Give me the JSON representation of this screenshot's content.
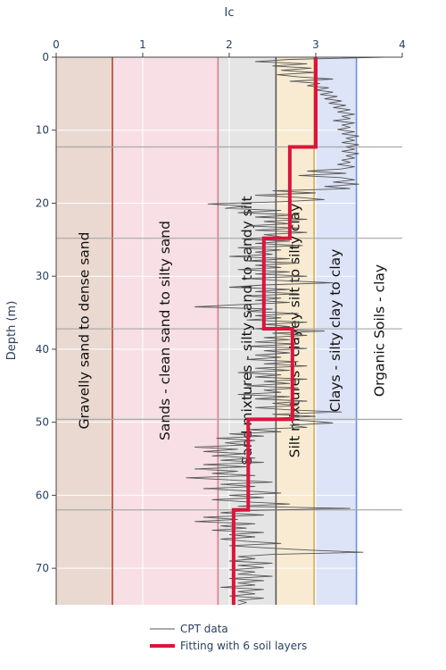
{
  "chart_data": {
    "type": "line",
    "xlabel": "Ic",
    "ylabel": "Depth (m)",
    "xlim": [
      0,
      4
    ],
    "ylim": [
      75,
      0
    ],
    "x_axis_position": "top",
    "y_reversed": true,
    "grid": true,
    "x_ticks": [
      0,
      1,
      2,
      3,
      4
    ],
    "y_ticks": [
      0,
      10,
      20,
      30,
      40,
      50,
      60,
      70
    ],
    "zones": [
      {
        "label": "Gravelly sand to dense sand",
        "x0": 0,
        "x1": 0.65,
        "fill": "#ead9d1",
        "line": "#b8442a"
      },
      {
        "label": "Sands - clean sand to silty sand",
        "x0": 0.65,
        "x1": 1.87,
        "fill": "#f7dfe5",
        "line": "#de7a90"
      },
      {
        "label": "Sand mixtures - silty sand to sandy silt",
        "x0": 1.87,
        "x1": 2.54,
        "fill": "#e5e5e5",
        "line": "#595959"
      },
      {
        "label": "Silt mixtures - clayey silt to silty clay",
        "x0": 2.54,
        "x1": 2.98,
        "fill": "#f8ebd2",
        "line": "#d7b450"
      },
      {
        "label": "Clays - silty clay to clay",
        "x0": 2.98,
        "x1": 3.47,
        "fill": "#dde4f7",
        "line": "#6b8fdb"
      },
      {
        "label": "Organic Soils - clay",
        "x0": 3.47,
        "x1": 4,
        "fill": "#ffffff",
        "line": null
      }
    ],
    "layer_boundaries": [
      12.3,
      24.8,
      37.2,
      49.6,
      62.0
    ],
    "series": [
      {
        "name": "CPT data",
        "color": "#555555",
        "points": [
          [
            3.8,
            0
          ],
          [
            2.7,
            0.3
          ],
          [
            2.3,
            0.6
          ],
          [
            2.9,
            0.9
          ],
          [
            2.5,
            1.2
          ],
          [
            2.95,
            1.5
          ],
          [
            2.6,
            1.8
          ],
          [
            3.0,
            2.1
          ],
          [
            2.55,
            2.4
          ],
          [
            2.8,
            2.7
          ],
          [
            3.2,
            3.0
          ],
          [
            2.7,
            3.3
          ],
          [
            3.05,
            3.6
          ],
          [
            2.9,
            3.9
          ],
          [
            3.15,
            4.2
          ],
          [
            3.0,
            4.5
          ],
          [
            3.2,
            4.8
          ],
          [
            3.05,
            5.1
          ],
          [
            3.25,
            5.4
          ],
          [
            3.1,
            5.7
          ],
          [
            3.3,
            6.0
          ],
          [
            3.15,
            6.3
          ],
          [
            3.35,
            6.6
          ],
          [
            3.2,
            6.9
          ],
          [
            3.4,
            7.2
          ],
          [
            3.25,
            7.5
          ],
          [
            3.45,
            7.8
          ],
          [
            3.3,
            8.1
          ],
          [
            3.4,
            8.4
          ],
          [
            3.2,
            8.7
          ],
          [
            3.45,
            9.0
          ],
          [
            3.3,
            9.3
          ],
          [
            3.4,
            9.6
          ],
          [
            3.25,
            9.9
          ],
          [
            3.45,
            10.2
          ],
          [
            3.3,
            10.5
          ],
          [
            3.5,
            10.8
          ],
          [
            3.35,
            11.1
          ],
          [
            3.45,
            11.4
          ],
          [
            3.3,
            11.7
          ],
          [
            3.5,
            12.0
          ],
          [
            3.35,
            12.3
          ],
          [
            3.45,
            12.6
          ],
          [
            3.3,
            12.9
          ],
          [
            3.5,
            13.2
          ],
          [
            3.35,
            13.5
          ],
          [
            3.45,
            13.8
          ],
          [
            3.3,
            14.1
          ],
          [
            3.4,
            14.4
          ],
          [
            3.25,
            14.7
          ],
          [
            3.45,
            15.0
          ],
          [
            3.3,
            15.3
          ],
          [
            2.9,
            15.6
          ],
          [
            3.35,
            15.9
          ],
          [
            2.8,
            16.2
          ],
          [
            3.3,
            16.5
          ],
          [
            3.45,
            16.8
          ],
          [
            3.2,
            17.1
          ],
          [
            3.5,
            17.4
          ],
          [
            3.1,
            17.7
          ],
          [
            3.4,
            18.0
          ],
          [
            2.5,
            18.3
          ],
          [
            3.0,
            18.6
          ],
          [
            2.3,
            18.9
          ],
          [
            2.8,
            19.2
          ],
          [
            3.1,
            19.5
          ],
          [
            2.6,
            19.8
          ],
          [
            1.75,
            20.1
          ],
          [
            2.2,
            20.4
          ],
          [
            1.95,
            20.7
          ],
          [
            2.6,
            21.0
          ],
          [
            2.1,
            21.3
          ],
          [
            2.8,
            21.6
          ],
          [
            2.3,
            21.9
          ],
          [
            2.9,
            22.2
          ],
          [
            2.4,
            22.5
          ],
          [
            2.7,
            22.8
          ],
          [
            2.2,
            23.1
          ],
          [
            2.8,
            23.4
          ],
          [
            2.3,
            23.7
          ],
          [
            2.9,
            24.0
          ],
          [
            2.4,
            24.3
          ],
          [
            2.6,
            24.6
          ],
          [
            2.15,
            24.9
          ],
          [
            2.7,
            25.2
          ],
          [
            2.3,
            25.5
          ],
          [
            2.85,
            25.8
          ],
          [
            2.1,
            26.1
          ],
          [
            2.6,
            26.4
          ],
          [
            2.3,
            26.7
          ],
          [
            2.5,
            27.0
          ],
          [
            2.0,
            27.3
          ],
          [
            2.7,
            27.6
          ],
          [
            2.2,
            27.9
          ],
          [
            2.8,
            28.2
          ],
          [
            2.3,
            28.5
          ],
          [
            2.6,
            28.8
          ],
          [
            2.1,
            29.1
          ],
          [
            2.7,
            29.4
          ],
          [
            2.3,
            29.7
          ],
          [
            2.9,
            30.0
          ],
          [
            2.2,
            30.3
          ],
          [
            2.6,
            30.6
          ],
          [
            3.2,
            30.9
          ],
          [
            2.4,
            31.2
          ],
          [
            2.0,
            31.5
          ],
          [
            2.7,
            31.8
          ],
          [
            2.3,
            32.1
          ],
          [
            2.8,
            32.4
          ],
          [
            2.2,
            32.7
          ],
          [
            2.6,
            33.0
          ],
          [
            2.3,
            33.3
          ],
          [
            2.7,
            33.6
          ],
          [
            2.1,
            33.9
          ],
          [
            1.6,
            34.2
          ],
          [
            2.5,
            34.5
          ],
          [
            2.2,
            34.8
          ],
          [
            2.8,
            35.1
          ],
          [
            2.3,
            35.4
          ],
          [
            2.6,
            35.7
          ],
          [
            2.2,
            36.0
          ],
          [
            2.9,
            36.3
          ],
          [
            2.4,
            36.6
          ],
          [
            2.7,
            36.9
          ],
          [
            2.3,
            37.2
          ],
          [
            3.1,
            37.5
          ],
          [
            2.5,
            37.8
          ],
          [
            2.9,
            38.1
          ],
          [
            2.4,
            38.4
          ],
          [
            2.7,
            38.7
          ],
          [
            2.3,
            39.0
          ],
          [
            2.8,
            39.3
          ],
          [
            2.2,
            39.6
          ],
          [
            2.9,
            39.9
          ],
          [
            2.4,
            40.2
          ],
          [
            2.7,
            40.5
          ],
          [
            2.3,
            40.8
          ],
          [
            2.6,
            41.1
          ],
          [
            2.2,
            41.4
          ],
          [
            2.8,
            41.7
          ],
          [
            2.4,
            42.0
          ],
          [
            2.9,
            42.3
          ],
          [
            2.3,
            42.6
          ],
          [
            2.7,
            42.9
          ],
          [
            2.1,
            43.2
          ],
          [
            2.6,
            43.5
          ],
          [
            2.3,
            43.8
          ],
          [
            2.9,
            44.1
          ],
          [
            2.4,
            44.4
          ],
          [
            2.7,
            44.7
          ],
          [
            2.2,
            45.0
          ],
          [
            2.8,
            45.3
          ],
          [
            2.4,
            45.6
          ],
          [
            2.6,
            45.9
          ],
          [
            2.1,
            46.2
          ],
          [
            2.7,
            46.5
          ],
          [
            2.3,
            46.8
          ],
          [
            2.9,
            47.1
          ],
          [
            2.5,
            47.4
          ],
          [
            2.8,
            47.7
          ],
          [
            2.3,
            48.0
          ],
          [
            2.7,
            48.3
          ],
          [
            3.3,
            48.6
          ],
          [
            2.5,
            48.9
          ],
          [
            3.0,
            49.2
          ],
          [
            2.4,
            49.5
          ],
          [
            2.9,
            49.8
          ],
          [
            3.2,
            50.1
          ],
          [
            2.7,
            50.4
          ],
          [
            2.9,
            50.7
          ],
          [
            2.2,
            51.0
          ],
          [
            2.6,
            51.3
          ],
          [
            2.0,
            51.6
          ],
          [
            2.4,
            51.9
          ],
          [
            1.85,
            52.2
          ],
          [
            2.3,
            52.5
          ],
          [
            1.95,
            52.8
          ],
          [
            2.2,
            53.1
          ],
          [
            1.6,
            53.4
          ],
          [
            2.1,
            53.7
          ],
          [
            1.7,
            54.0
          ],
          [
            2.2,
            54.3
          ],
          [
            1.8,
            54.6
          ],
          [
            2.3,
            54.9
          ],
          [
            1.9,
            55.2
          ],
          [
            2.4,
            55.5
          ],
          [
            1.7,
            55.8
          ],
          [
            2.2,
            56.1
          ],
          [
            1.6,
            56.4
          ],
          [
            2.1,
            56.7
          ],
          [
            1.8,
            57.0
          ],
          [
            2.3,
            57.3
          ],
          [
            1.5,
            57.6
          ],
          [
            2.0,
            57.9
          ],
          [
            2.5,
            58.2
          ],
          [
            1.9,
            58.5
          ],
          [
            2.3,
            58.8
          ],
          [
            1.7,
            59.1
          ],
          [
            2.2,
            59.4
          ],
          [
            2.6,
            59.7
          ],
          [
            2.0,
            60.0
          ],
          [
            2.4,
            60.3
          ],
          [
            1.8,
            60.6
          ],
          [
            2.2,
            60.9
          ],
          [
            2.7,
            61.2
          ],
          [
            2.1,
            61.5
          ],
          [
            3.4,
            61.8
          ],
          [
            2.2,
            62.1
          ],
          [
            1.9,
            62.4
          ],
          [
            2.4,
            62.7
          ],
          [
            1.7,
            63.0
          ],
          [
            2.1,
            63.3
          ],
          [
            1.6,
            63.6
          ],
          [
            2.3,
            63.9
          ],
          [
            1.9,
            64.2
          ],
          [
            2.2,
            64.5
          ],
          [
            1.8,
            64.8
          ],
          [
            2.4,
            65.1
          ],
          [
            2.0,
            65.4
          ],
          [
            2.3,
            65.7
          ],
          [
            1.9,
            66.0
          ],
          [
            2.2,
            66.3
          ],
          [
            2.6,
            66.6
          ],
          [
            2.0,
            66.9
          ],
          [
            2.4,
            67.2
          ],
          [
            2.9,
            67.5
          ],
          [
            3.55,
            67.8
          ],
          [
            2.5,
            68.1
          ],
          [
            2.1,
            68.4
          ],
          [
            2.3,
            68.7
          ],
          [
            2.0,
            69.0
          ],
          [
            2.5,
            69.3
          ],
          [
            2.1,
            69.6
          ],
          [
            2.4,
            69.9
          ],
          [
            2.0,
            70.2
          ],
          [
            2.3,
            70.5
          ],
          [
            2.1,
            70.8
          ],
          [
            2.5,
            71.1
          ],
          [
            2.0,
            71.4
          ],
          [
            2.4,
            71.7
          ],
          [
            2.1,
            72.0
          ],
          [
            2.3,
            72.3
          ],
          [
            1.9,
            72.6
          ],
          [
            2.4,
            72.9
          ],
          [
            2.1,
            73.2
          ],
          [
            2.3,
            73.5
          ],
          [
            2.0,
            73.8
          ],
          [
            2.4,
            74.1
          ],
          [
            2.1,
            74.4
          ],
          [
            2.2,
            74.7
          ],
          [
            2.1,
            75
          ]
        ]
      },
      {
        "name": "Fitting with 6 soil layers",
        "color": "#dc143c",
        "points": [
          [
            3.0,
            0
          ],
          [
            3.0,
            12.3
          ],
          [
            2.7,
            12.3
          ],
          [
            2.7,
            24.8
          ],
          [
            2.4,
            24.8
          ],
          [
            2.4,
            37.2
          ],
          [
            2.73,
            37.2
          ],
          [
            2.73,
            49.6
          ],
          [
            2.22,
            49.6
          ],
          [
            2.22,
            62.0
          ],
          [
            2.05,
            62.0
          ],
          [
            2.05,
            75
          ]
        ]
      }
    ],
    "legend": {
      "placement": "bottom-center",
      "entries": [
        "CPT data",
        "Fitting with 6 soil layers"
      ]
    }
  }
}
